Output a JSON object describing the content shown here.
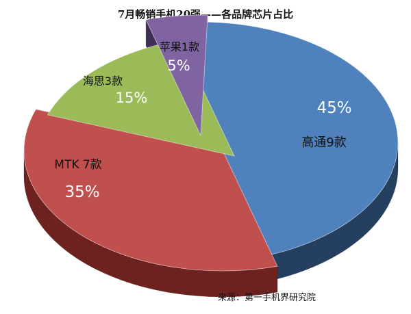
{
  "chart_data": {
    "type": "pie",
    "title": "7月畅销手机20强——各品牌芯片占比",
    "categories": [
      "高通9款",
      "MTK 7款",
      "海思3款",
      "苹果1款"
    ],
    "values": [
      45,
      35,
      15,
      5
    ],
    "value_labels": [
      "45%",
      "35%",
      "15%",
      "5%"
    ],
    "colors": [
      "#4F81BD",
      "#C0504D",
      "#9BBB59",
      "#8064A2"
    ],
    "side_colors": [
      "#243F60",
      "#6E2220",
      "#4F6228",
      "#3F2F57"
    ],
    "exploded": true,
    "style": "3d"
  },
  "source": "来源：第一手机界研究院"
}
